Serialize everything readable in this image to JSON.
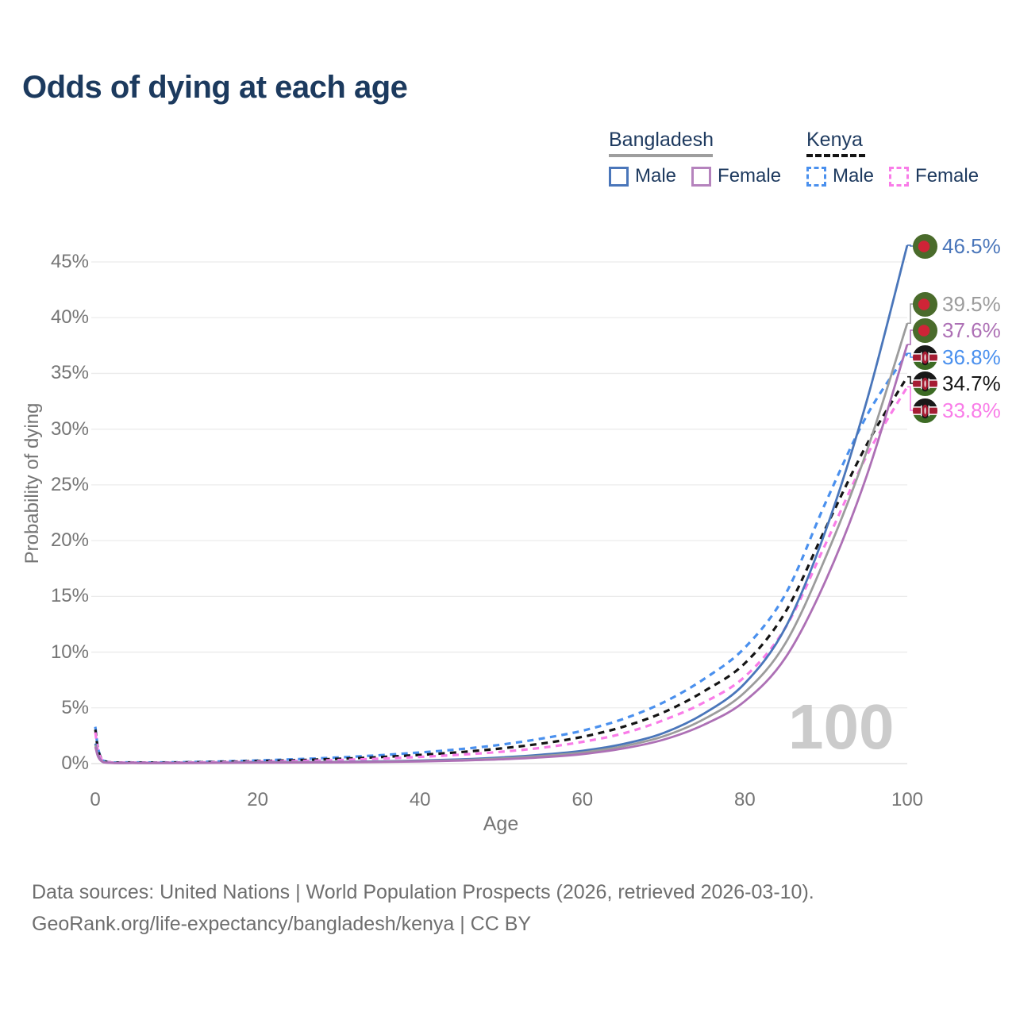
{
  "title": "Odds of dying at each age",
  "watermark": "100",
  "legend": {
    "groups": [
      {
        "name": "Bangladesh",
        "line_style": "solid",
        "underline_color": "#9e9e9e",
        "items": [
          {
            "label": "Male",
            "color": "#4a76ba"
          },
          {
            "label": "Female",
            "color": "#b583bd"
          }
        ]
      },
      {
        "name": "Kenya",
        "line_style": "dashed",
        "underline_color": "#141414",
        "items": [
          {
            "label": "Male",
            "color": "#4a90ee"
          },
          {
            "label": "Female",
            "color": "#f97ce8"
          }
        ]
      }
    ]
  },
  "axes": {
    "x_title": "Age",
    "y_title": "Probability of dying",
    "x_ticks": [
      "0",
      "20",
      "40",
      "60",
      "80",
      "100"
    ],
    "y_ticks": [
      "0%",
      "5%",
      "10%",
      "15%",
      "20%",
      "25%",
      "30%",
      "35%",
      "40%",
      "45%"
    ]
  },
  "chart_data": {
    "type": "line",
    "title": "Odds of dying at each age",
    "xlabel": "Age",
    "ylabel": "Probability of dying",
    "x_range": [
      0,
      100
    ],
    "y_range_percent": [
      0,
      47
    ],
    "grid": "horizontal",
    "legend_position": "top-right",
    "ages": [
      0,
      1,
      5,
      10,
      15,
      20,
      25,
      30,
      35,
      40,
      45,
      50,
      55,
      60,
      65,
      70,
      75,
      80,
      85,
      90,
      95,
      100
    ],
    "series": [
      {
        "name": "Bangladesh Male",
        "country": "Bangladesh",
        "sex": "Male",
        "style": "solid",
        "color": "#4a76ba",
        "flag": "bangladesh",
        "end_label": "46.5%",
        "values_percent": [
          1.8,
          0.14,
          0.06,
          0.06,
          0.08,
          0.11,
          0.13,
          0.16,
          0.2,
          0.27,
          0.38,
          0.55,
          0.8,
          1.15,
          1.75,
          2.75,
          4.5,
          7.2,
          12.2,
          21.0,
          32.5,
          46.5
        ]
      },
      {
        "name": "Bangladesh (both sexes, unlabeled gray line)",
        "country": "Bangladesh",
        "sex": "All",
        "style": "solid",
        "color": "#9c9c9c",
        "flag": "bangladesh",
        "end_label": "39.5%",
        "values_percent": [
          1.65,
          0.13,
          0.055,
          0.055,
          0.07,
          0.095,
          0.11,
          0.14,
          0.17,
          0.23,
          0.32,
          0.46,
          0.68,
          1.0,
          1.55,
          2.45,
          4.0,
          6.4,
          10.8,
          18.6,
          28.0,
          39.5
        ]
      },
      {
        "name": "Bangladesh Female",
        "country": "Bangladesh",
        "sex": "Female",
        "style": "solid",
        "color": "#ad70b5",
        "flag": "bangladesh",
        "end_label": "37.6%",
        "values_percent": [
          1.5,
          0.12,
          0.05,
          0.05,
          0.06,
          0.08,
          0.09,
          0.11,
          0.14,
          0.19,
          0.27,
          0.38,
          0.56,
          0.85,
          1.35,
          2.15,
          3.5,
          5.6,
          9.5,
          16.5,
          25.8,
          37.6
        ]
      },
      {
        "name": "Kenya Male",
        "country": "Kenya",
        "sex": "Male",
        "style": "dashed",
        "color": "#4a90ee",
        "flag": "kenya",
        "end_label": "36.8%",
        "values_percent": [
          3.3,
          0.26,
          0.11,
          0.12,
          0.18,
          0.28,
          0.4,
          0.55,
          0.75,
          1.0,
          1.3,
          1.7,
          2.25,
          2.95,
          4.0,
          5.5,
          7.6,
          10.4,
          15.2,
          23.5,
          31.2,
          36.8
        ]
      },
      {
        "name": "Kenya (both sexes, unlabeled black dashed line)",
        "country": "Kenya",
        "sex": "All",
        "style": "dashed",
        "color": "#141414",
        "flag": "kenya",
        "end_label": "34.7%",
        "values_percent": [
          3.05,
          0.24,
          0.1,
          0.1,
          0.15,
          0.22,
          0.31,
          0.43,
          0.58,
          0.78,
          1.03,
          1.36,
          1.8,
          2.4,
          3.3,
          4.6,
          6.5,
          9.0,
          13.6,
          21.2,
          28.6,
          34.7
        ]
      },
      {
        "name": "Kenya Female",
        "country": "Kenya",
        "sex": "Female",
        "style": "dashed",
        "color": "#f97ce8",
        "flag": "kenya",
        "end_label": "33.8%",
        "values_percent": [
          2.8,
          0.22,
          0.09,
          0.09,
          0.12,
          0.17,
          0.23,
          0.32,
          0.44,
          0.6,
          0.8,
          1.06,
          1.42,
          1.95,
          2.7,
          3.9,
          5.5,
          7.8,
          12.2,
          19.8,
          27.6,
          33.8
        ]
      }
    ]
  },
  "palette": {
    "title": "#1c3a5e",
    "tick_labels": "#757575",
    "gridline": "#ebebeb",
    "zero_gridline": "#dcdcdc",
    "watermark": "#cbcbcb",
    "footer": "#6e6e6e",
    "bangladesh_flag_green": "#4a6b2b",
    "bangladesh_flag_red": "#cf2437",
    "kenya_flag_black": "#181818",
    "kenya_flag_red": "#a61c33",
    "kenya_flag_green": "#3c6b24"
  },
  "footer": {
    "line1": "Data sources: United Nations | World Population Prospects (2026, retrieved 2026-03-10).",
    "line2": "GeoRank.org/life-expectancy/bangladesh/kenya | CC BY"
  }
}
